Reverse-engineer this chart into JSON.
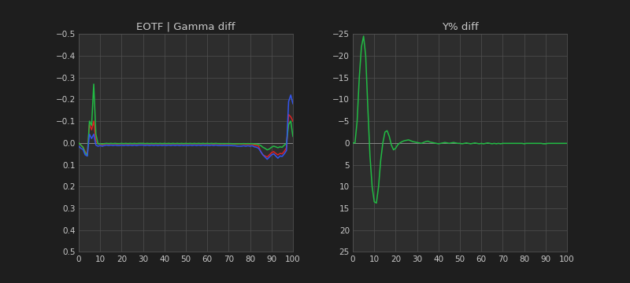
{
  "bg_color": "#1e1e1e",
  "plot_bg_color": "#2d2d2d",
  "grid_color": "#505050",
  "text_color": "#c8c8c8",
  "left_title": "EOTF | Gamma diff",
  "right_title": "Y% diff",
  "left_ylim": [
    0.5,
    -0.5
  ],
  "right_ylim": [
    25,
    -25
  ],
  "xlim": [
    0,
    100
  ],
  "left_yticks": [
    -0.5,
    -0.4,
    -0.3,
    -0.2,
    -0.1,
    0,
    0.1,
    0.2,
    0.3,
    0.4,
    0.5
  ],
  "right_yticks": [
    -25,
    -20,
    -15,
    -10,
    -5,
    0,
    5,
    10,
    15,
    20,
    25
  ],
  "xticks": [
    0,
    10,
    20,
    30,
    40,
    50,
    60,
    70,
    80,
    90,
    100
  ],
  "line_width": 1.1,
  "colors": {
    "red": "#dd2222",
    "green": "#22bb44",
    "blue": "#3355ee"
  },
  "left_red": [
    0,
    0.01,
    0.02,
    0.04,
    0.055,
    -0.085,
    -0.06,
    -0.1,
    -0.01,
    0.005,
    0.005,
    0.008,
    0.005,
    0.003,
    0.005,
    0.003,
    0.004,
    0.003,
    0.005,
    0.004,
    0.003,
    0.004,
    0.003,
    0.005,
    0.003,
    0.004,
    0.003,
    0.004,
    0.003,
    0.003,
    0.003,
    0.004,
    0.003,
    0.004,
    0.003,
    0.004,
    0.003,
    0.004,
    0.003,
    0.004,
    0.003,
    0.004,
    0.003,
    0.004,
    0.003,
    0.004,
    0.003,
    0.004,
    0.003,
    0.004,
    0.003,
    0.004,
    0.003,
    0.004,
    0.003,
    0.004,
    0.003,
    0.004,
    0.003,
    0.004,
    0.003,
    0.004,
    0.003,
    0.005,
    0.003,
    0.004,
    0.005,
    0.004,
    0.005,
    0.004,
    0.005,
    0.004,
    0.005,
    0.005,
    0.006,
    0.005,
    0.006,
    0.005,
    0.007,
    0.006,
    0.007,
    0.006,
    0.01,
    0.012,
    0.015,
    0.04,
    0.055,
    0.06,
    0.065,
    0.055,
    0.045,
    0.04,
    0.048,
    0.055,
    0.048,
    0.05,
    0.038,
    0.022,
    -0.13,
    -0.12,
    -0.1
  ],
  "left_green": [
    0,
    0.01,
    0.02,
    0.045,
    0.06,
    -0.1,
    -0.08,
    -0.27,
    -0.04,
    0.005,
    0.003,
    0.005,
    0.003,
    0.002,
    0.003,
    0.002,
    0.003,
    0.002,
    0.003,
    0.003,
    0.002,
    0.003,
    0.002,
    0.003,
    0.002,
    0.003,
    0.002,
    0.003,
    0.002,
    0.002,
    0.002,
    0.003,
    0.002,
    0.003,
    0.002,
    0.003,
    0.002,
    0.003,
    0.002,
    0.003,
    0.002,
    0.003,
    0.002,
    0.003,
    0.002,
    0.003,
    0.002,
    0.003,
    0.002,
    0.003,
    0.002,
    0.003,
    0.002,
    0.003,
    0.002,
    0.003,
    0.002,
    0.003,
    0.002,
    0.003,
    0.002,
    0.003,
    0.002,
    0.003,
    0.002,
    0.003,
    0.003,
    0.003,
    0.003,
    0.003,
    0.003,
    0.003,
    0.004,
    0.004,
    0.004,
    0.004,
    0.004,
    0.003,
    0.004,
    0.003,
    0.004,
    0.003,
    0.005,
    0.005,
    0.008,
    0.012,
    0.02,
    0.025,
    0.032,
    0.028,
    0.02,
    0.015,
    0.018,
    0.022,
    0.018,
    0.02,
    0.01,
    0.002,
    -0.085,
    -0.1,
    -0.03
  ],
  "left_blue": [
    0.015,
    0.025,
    0.03,
    0.055,
    0.06,
    -0.04,
    -0.02,
    -0.04,
    0.01,
    0.015,
    0.012,
    0.015,
    0.012,
    0.01,
    0.012,
    0.01,
    0.012,
    0.01,
    0.012,
    0.012,
    0.01,
    0.012,
    0.01,
    0.012,
    0.01,
    0.012,
    0.01,
    0.012,
    0.01,
    0.01,
    0.01,
    0.012,
    0.01,
    0.012,
    0.01,
    0.012,
    0.01,
    0.012,
    0.01,
    0.012,
    0.01,
    0.012,
    0.01,
    0.012,
    0.01,
    0.012,
    0.01,
    0.012,
    0.01,
    0.012,
    0.01,
    0.012,
    0.01,
    0.012,
    0.01,
    0.012,
    0.01,
    0.012,
    0.01,
    0.012,
    0.01,
    0.012,
    0.01,
    0.012,
    0.01,
    0.012,
    0.012,
    0.012,
    0.012,
    0.012,
    0.012,
    0.012,
    0.013,
    0.013,
    0.015,
    0.015,
    0.015,
    0.013,
    0.015,
    0.013,
    0.015,
    0.013,
    0.018,
    0.02,
    0.025,
    0.04,
    0.055,
    0.065,
    0.075,
    0.065,
    0.055,
    0.05,
    0.06,
    0.07,
    0.06,
    0.062,
    0.05,
    0.035,
    -0.19,
    -0.22,
    -0.18
  ],
  "right_green": [
    0,
    0,
    -5,
    -15,
    -22,
    -24.5,
    -20,
    -8,
    3,
    10,
    13.5,
    13.8,
    10,
    4,
    0,
    -2.5,
    -2.8,
    -1.5,
    0.5,
    1.6,
    1.2,
    0.4,
    0.0,
    -0.3,
    -0.5,
    -0.6,
    -0.7,
    -0.5,
    -0.3,
    -0.2,
    -0.1,
    0.0,
    0.1,
    -0.1,
    -0.3,
    -0.4,
    -0.2,
    -0.1,
    0.0,
    0.1,
    0.2,
    0.1,
    0.0,
    -0.1,
    0.0,
    0.1,
    0.0,
    -0.1,
    0.0,
    0.1,
    0.1,
    0.2,
    0.1,
    0.0,
    0.1,
    0.2,
    0.1,
    0.0,
    0.1,
    0.2,
    0.1,
    0.2,
    0.1,
    0.0,
    0.1,
    0.2,
    0.1,
    0.2,
    0.1,
    0.2,
    0.1,
    0.1,
    0.1,
    0.1,
    0.1,
    0.1,
    0.1,
    0.1,
    0.1,
    0.1,
    0.2,
    0.1,
    0.1,
    0.1,
    0.1,
    0.1,
    0.1,
    0.1,
    0.1,
    0.2,
    0.2,
    0.1,
    0.1,
    0.1,
    0.1,
    0.1,
    0.1,
    0.1,
    0.1,
    0.1,
    0.1
  ]
}
